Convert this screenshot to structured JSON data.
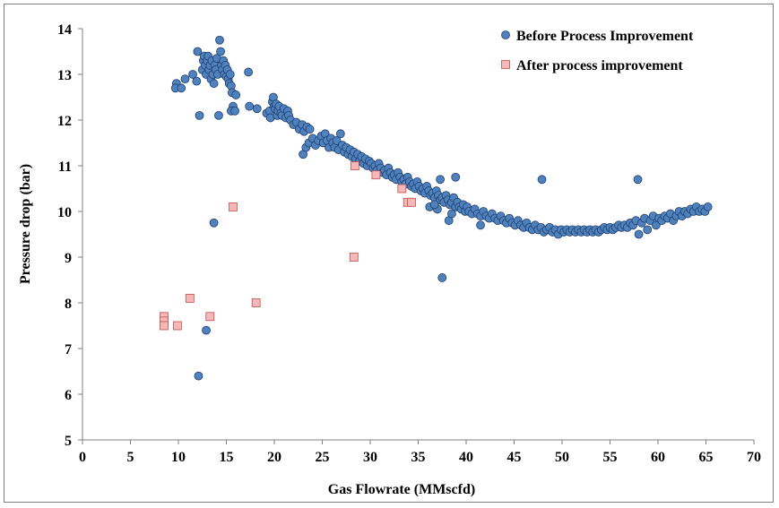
{
  "colors": {
    "before_fill": "#4f81bd",
    "before_stroke": "#1f3f6f",
    "after_fill": "#f4b8b8",
    "after_stroke": "#c0504d",
    "axis": "#7f7f7f"
  },
  "chart_data": {
    "type": "scatter",
    "title": "",
    "xlabel": "Gas Flowrate (MMscfd)",
    "ylabel": "Pressure drop (bar)",
    "xlim": [
      0,
      70
    ],
    "ylim": [
      5,
      14
    ],
    "xticks": [
      0,
      5,
      10,
      15,
      20,
      25,
      30,
      35,
      40,
      45,
      50,
      55,
      60,
      65,
      70
    ],
    "yticks": [
      5,
      6,
      7,
      8,
      9,
      10,
      11,
      12,
      13,
      14
    ],
    "grid": false,
    "legend_position": "top-right",
    "series": [
      {
        "name": "Before Process Improvement",
        "marker": "circle",
        "points": [
          [
            9.8,
            12.8
          ],
          [
            9.7,
            12.7
          ],
          [
            10.3,
            12.7
          ],
          [
            10.7,
            12.9
          ],
          [
            11.5,
            13.0
          ],
          [
            11.9,
            12.85
          ],
          [
            12.0,
            13.5
          ],
          [
            12.2,
            12.1
          ],
          [
            12.5,
            13.1
          ],
          [
            12.6,
            13.3
          ],
          [
            12.7,
            13.4
          ],
          [
            12.8,
            13.2
          ],
          [
            12.9,
            13.0
          ],
          [
            13.0,
            13.3
          ],
          [
            13.1,
            13.4
          ],
          [
            13.2,
            13.1
          ],
          [
            13.3,
            13.2
          ],
          [
            13.4,
            12.9
          ],
          [
            13.5,
            13.3
          ],
          [
            13.6,
            13.0
          ],
          [
            13.7,
            12.8
          ],
          [
            13.8,
            13.2
          ],
          [
            13.9,
            13.1
          ],
          [
            14.0,
            13.35
          ],
          [
            14.1,
            13.0
          ],
          [
            14.2,
            12.1
          ],
          [
            14.3,
            13.75
          ],
          [
            14.4,
            13.5
          ],
          [
            14.5,
            13.2
          ],
          [
            14.6,
            13.1
          ],
          [
            14.7,
            13.3
          ],
          [
            14.8,
            13.0
          ],
          [
            14.9,
            13.2
          ],
          [
            15.0,
            12.95
          ],
          [
            15.1,
            13.1
          ],
          [
            15.2,
            12.9
          ],
          [
            15.3,
            12.8
          ],
          [
            15.4,
            13.0
          ],
          [
            15.5,
            12.75
          ],
          [
            15.6,
            12.6
          ],
          [
            15.7,
            12.3
          ],
          [
            15.5,
            12.2
          ],
          [
            15.9,
            12.2
          ],
          [
            16.0,
            12.55
          ],
          [
            13.7,
            9.75
          ],
          [
            17.3,
            13.05
          ],
          [
            17.4,
            12.3
          ],
          [
            18.2,
            12.25
          ],
          [
            12.9,
            7.4
          ],
          [
            12.1,
            6.4
          ],
          [
            19.2,
            12.15
          ],
          [
            19.5,
            12.2
          ],
          [
            19.6,
            12.05
          ],
          [
            19.8,
            12.4
          ],
          [
            19.9,
            12.5
          ],
          [
            20.0,
            12.3
          ],
          [
            20.1,
            12.25
          ],
          [
            20.2,
            12.35
          ],
          [
            20.3,
            12.1
          ],
          [
            20.4,
            12.2
          ],
          [
            20.5,
            12.3
          ],
          [
            20.7,
            12.15
          ],
          [
            20.8,
            12.1
          ],
          [
            21.0,
            12.25
          ],
          [
            21.2,
            12.05
          ],
          [
            21.4,
            12.2
          ],
          [
            21.5,
            12.1
          ],
          [
            21.7,
            12.0
          ],
          [
            22.0,
            11.9
          ],
          [
            22.3,
            11.95
          ],
          [
            22.6,
            11.8
          ],
          [
            22.9,
            11.9
          ],
          [
            23.1,
            11.75
          ],
          [
            23.4,
            11.85
          ],
          [
            23.7,
            11.8
          ],
          [
            23.0,
            11.25
          ],
          [
            23.3,
            11.4
          ],
          [
            23.6,
            11.5
          ],
          [
            24.0,
            11.6
          ],
          [
            24.3,
            11.45
          ],
          [
            24.6,
            11.55
          ],
          [
            24.9,
            11.65
          ],
          [
            25.1,
            11.5
          ],
          [
            25.3,
            11.7
          ],
          [
            25.5,
            11.55
          ],
          [
            25.7,
            11.4
          ],
          [
            25.9,
            11.6
          ],
          [
            26.1,
            11.5
          ],
          [
            26.3,
            11.4
          ],
          [
            26.5,
            11.55
          ],
          [
            26.7,
            11.35
          ],
          [
            26.9,
            11.7
          ],
          [
            27.1,
            11.45
          ],
          [
            27.3,
            11.3
          ],
          [
            27.5,
            11.4
          ],
          [
            27.7,
            11.25
          ],
          [
            27.9,
            11.35
          ],
          [
            28.1,
            11.2
          ],
          [
            28.3,
            11.3
          ],
          [
            28.5,
            11.15
          ],
          [
            28.7,
            11.25
          ],
          [
            28.9,
            11.1
          ],
          [
            29.1,
            11.2
          ],
          [
            29.3,
            11.05
          ],
          [
            29.5,
            11.15
          ],
          [
            29.7,
            11.0
          ],
          [
            29.9,
            11.1
          ],
          [
            30.1,
            11.05
          ],
          [
            30.3,
            10.95
          ],
          [
            30.5,
            11.0
          ],
          [
            30.7,
            10.9
          ],
          [
            30.9,
            11.05
          ],
          [
            31.1,
            10.95
          ],
          [
            31.3,
            10.85
          ],
          [
            31.5,
            10.9
          ],
          [
            31.7,
            10.8
          ],
          [
            31.9,
            10.95
          ],
          [
            32.1,
            10.85
          ],
          [
            32.3,
            10.75
          ],
          [
            32.5,
            10.8
          ],
          [
            32.7,
            10.7
          ],
          [
            32.9,
            10.85
          ],
          [
            33.1,
            10.75
          ],
          [
            33.3,
            10.65
          ],
          [
            33.5,
            10.7
          ],
          [
            33.7,
            10.6
          ],
          [
            33.9,
            10.75
          ],
          [
            34.1,
            10.65
          ],
          [
            34.3,
            10.55
          ],
          [
            34.5,
            10.6
          ],
          [
            34.7,
            10.5
          ],
          [
            34.9,
            10.65
          ],
          [
            35.1,
            10.55
          ],
          [
            35.3,
            10.45
          ],
          [
            35.5,
            10.5
          ],
          [
            35.7,
            10.4
          ],
          [
            35.9,
            10.55
          ],
          [
            36.1,
            10.45
          ],
          [
            36.3,
            10.35
          ],
          [
            36.5,
            10.4
          ],
          [
            36.7,
            10.3
          ],
          [
            36.9,
            10.45
          ],
          [
            37.1,
            10.35
          ],
          [
            37.3,
            10.25
          ],
          [
            37.5,
            10.3
          ],
          [
            37.7,
            10.2
          ],
          [
            37.9,
            10.35
          ],
          [
            38.1,
            10.25
          ],
          [
            38.3,
            10.15
          ],
          [
            38.5,
            10.2
          ],
          [
            38.7,
            10.3
          ],
          [
            38.9,
            10.1
          ],
          [
            39.1,
            10.2
          ],
          [
            39.3,
            10.1
          ],
          [
            39.5,
            10.05
          ],
          [
            39.7,
            10.15
          ],
          [
            39.9,
            10.0
          ],
          [
            40.1,
            10.1
          ],
          [
            40.3,
            10.0
          ],
          [
            40.6,
            9.95
          ],
          [
            40.9,
            10.05
          ],
          [
            41.2,
            9.95
          ],
          [
            41.5,
            9.9
          ],
          [
            41.8,
            10.0
          ],
          [
            42.1,
            9.9
          ],
          [
            42.4,
            9.85
          ],
          [
            42.7,
            9.95
          ],
          [
            43.0,
            9.85
          ],
          [
            43.3,
            9.8
          ],
          [
            43.6,
            9.9
          ],
          [
            43.9,
            9.8
          ],
          [
            44.2,
            9.75
          ],
          [
            44.5,
            9.85
          ],
          [
            44.8,
            9.75
          ],
          [
            45.1,
            9.7
          ],
          [
            45.4,
            9.8
          ],
          [
            45.7,
            9.7
          ],
          [
            46.0,
            9.65
          ],
          [
            46.3,
            9.75
          ],
          [
            46.6,
            9.65
          ],
          [
            46.9,
            9.6
          ],
          [
            47.2,
            9.7
          ],
          [
            47.5,
            9.6
          ],
          [
            47.8,
            9.65
          ],
          [
            48.1,
            9.55
          ],
          [
            48.4,
            9.6
          ],
          [
            48.7,
            9.65
          ],
          [
            49.0,
            9.55
          ],
          [
            49.3,
            9.6
          ],
          [
            49.6,
            9.5
          ],
          [
            49.9,
            9.6
          ],
          [
            50.2,
            9.55
          ],
          [
            50.5,
            9.6
          ],
          [
            50.8,
            9.55
          ],
          [
            51.1,
            9.6
          ],
          [
            51.4,
            9.55
          ],
          [
            51.7,
            9.6
          ],
          [
            52.0,
            9.55
          ],
          [
            52.3,
            9.6
          ],
          [
            52.6,
            9.55
          ],
          [
            52.9,
            9.6
          ],
          [
            53.2,
            9.55
          ],
          [
            53.5,
            9.6
          ],
          [
            53.8,
            9.55
          ],
          [
            54.1,
            9.6
          ],
          [
            54.4,
            9.65
          ],
          [
            54.7,
            9.6
          ],
          [
            55.0,
            9.65
          ],
          [
            55.3,
            9.6
          ],
          [
            55.6,
            9.65
          ],
          [
            55.9,
            9.7
          ],
          [
            56.2,
            9.65
          ],
          [
            56.5,
            9.7
          ],
          [
            56.8,
            9.65
          ],
          [
            57.1,
            9.75
          ],
          [
            57.4,
            9.7
          ],
          [
            57.7,
            9.8
          ],
          [
            58.0,
            9.5
          ],
          [
            58.3,
            9.75
          ],
          [
            58.6,
            9.85
          ],
          [
            58.9,
            9.6
          ],
          [
            59.2,
            9.8
          ],
          [
            59.5,
            9.9
          ],
          [
            59.8,
            9.7
          ],
          [
            60.1,
            9.85
          ],
          [
            60.4,
            9.8
          ],
          [
            60.7,
            9.9
          ],
          [
            61.0,
            9.85
          ],
          [
            61.3,
            9.95
          ],
          [
            61.6,
            9.8
          ],
          [
            61.9,
            9.9
          ],
          [
            62.2,
            10.0
          ],
          [
            62.5,
            9.9
          ],
          [
            62.8,
            10.0
          ],
          [
            63.1,
            9.95
          ],
          [
            63.4,
            10.05
          ],
          [
            63.7,
            10.0
          ],
          [
            64.0,
            10.1
          ],
          [
            64.3,
            10.0
          ],
          [
            64.6,
            10.05
          ],
          [
            64.9,
            10.0
          ],
          [
            65.2,
            10.1
          ],
          [
            36.2,
            10.1
          ],
          [
            37.3,
            10.7
          ],
          [
            37.5,
            8.55
          ],
          [
            38.2,
            9.8
          ],
          [
            38.9,
            10.75
          ],
          [
            41.5,
            9.7
          ],
          [
            47.9,
            10.7
          ],
          [
            57.9,
            10.7
          ],
          [
            37.0,
            10.05
          ],
          [
            36.7,
            10.15
          ],
          [
            38.5,
            9.95
          ]
        ]
      },
      {
        "name": "After process improvement",
        "marker": "square",
        "points": [
          [
            8.5,
            7.7
          ],
          [
            8.5,
            7.6
          ],
          [
            8.5,
            7.5
          ],
          [
            9.9,
            7.5
          ],
          [
            11.2,
            8.1
          ],
          [
            13.3,
            7.7
          ],
          [
            15.7,
            10.1
          ],
          [
            18.1,
            8.0
          ],
          [
            28.3,
            9.0
          ],
          [
            28.4,
            11.0
          ],
          [
            30.6,
            10.8
          ],
          [
            33.3,
            10.5
          ],
          [
            33.9,
            10.2
          ],
          [
            34.3,
            10.2
          ]
        ]
      }
    ]
  }
}
